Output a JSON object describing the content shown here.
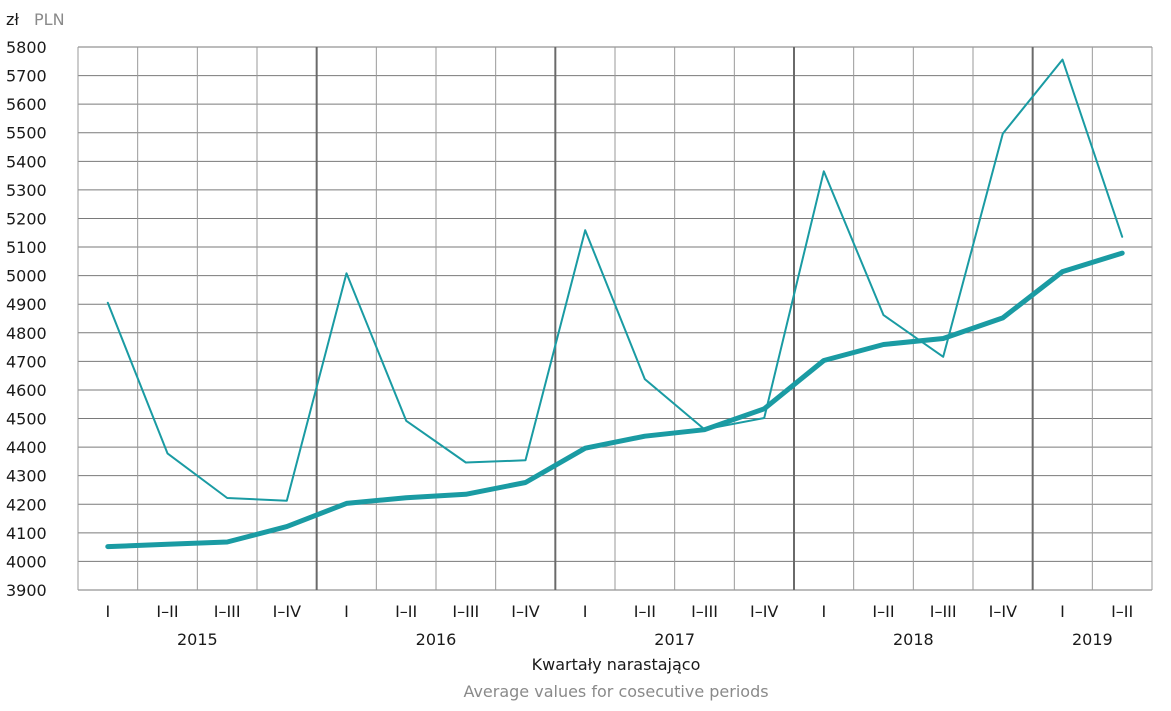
{
  "chart_data": {
    "type": "line",
    "unit_label_pl": "zł",
    "unit_label_en": "PLN",
    "xlabel_pl": "Kwartały narastająco",
    "xlabel_en": "Average values for cosecutive periods",
    "ylim": [
      3900,
      5800
    ],
    "yticks": [
      3900,
      4000,
      4100,
      4200,
      4300,
      4400,
      4500,
      4600,
      4700,
      4800,
      4900,
      5000,
      5100,
      5200,
      5300,
      5400,
      5500,
      5600,
      5700,
      5800
    ],
    "grid": true,
    "categories": [
      "I",
      "I–II",
      "I–III",
      "I–IV",
      "I",
      "I–II",
      "I–III",
      "I–IV",
      "I",
      "I–II",
      "I–III",
      "I–IV",
      "I",
      "I–II",
      "I–III",
      "I–IV",
      "I",
      "I–II"
    ],
    "years": [
      {
        "label": "2015",
        "start": 0,
        "count": 4
      },
      {
        "label": "2016",
        "start": 4,
        "count": 4
      },
      {
        "label": "2017",
        "start": 8,
        "count": 4
      },
      {
        "label": "2018",
        "start": 12,
        "count": 4
      },
      {
        "label": "2019",
        "start": 16,
        "count": 2
      }
    ],
    "series": [
      {
        "color": "#1a9ba3",
        "width": "thin",
        "values": [
          4905,
          4378,
          4222,
          4212,
          5008,
          4492,
          4346,
          4354,
          5159,
          4638,
          4462,
          4502,
          5365,
          4862,
          4716,
          5497,
          5756,
          5136
        ]
      },
      {
        "color": "#1a9ba3",
        "width": "thick",
        "values": [
          4052,
          4060,
          4068,
          4122,
          4203,
          4223,
          4235,
          4276,
          4396,
          4438,
          4461,
          4534,
          4703,
          4759,
          4780,
          4852,
          5014,
          5079
        ]
      }
    ]
  }
}
